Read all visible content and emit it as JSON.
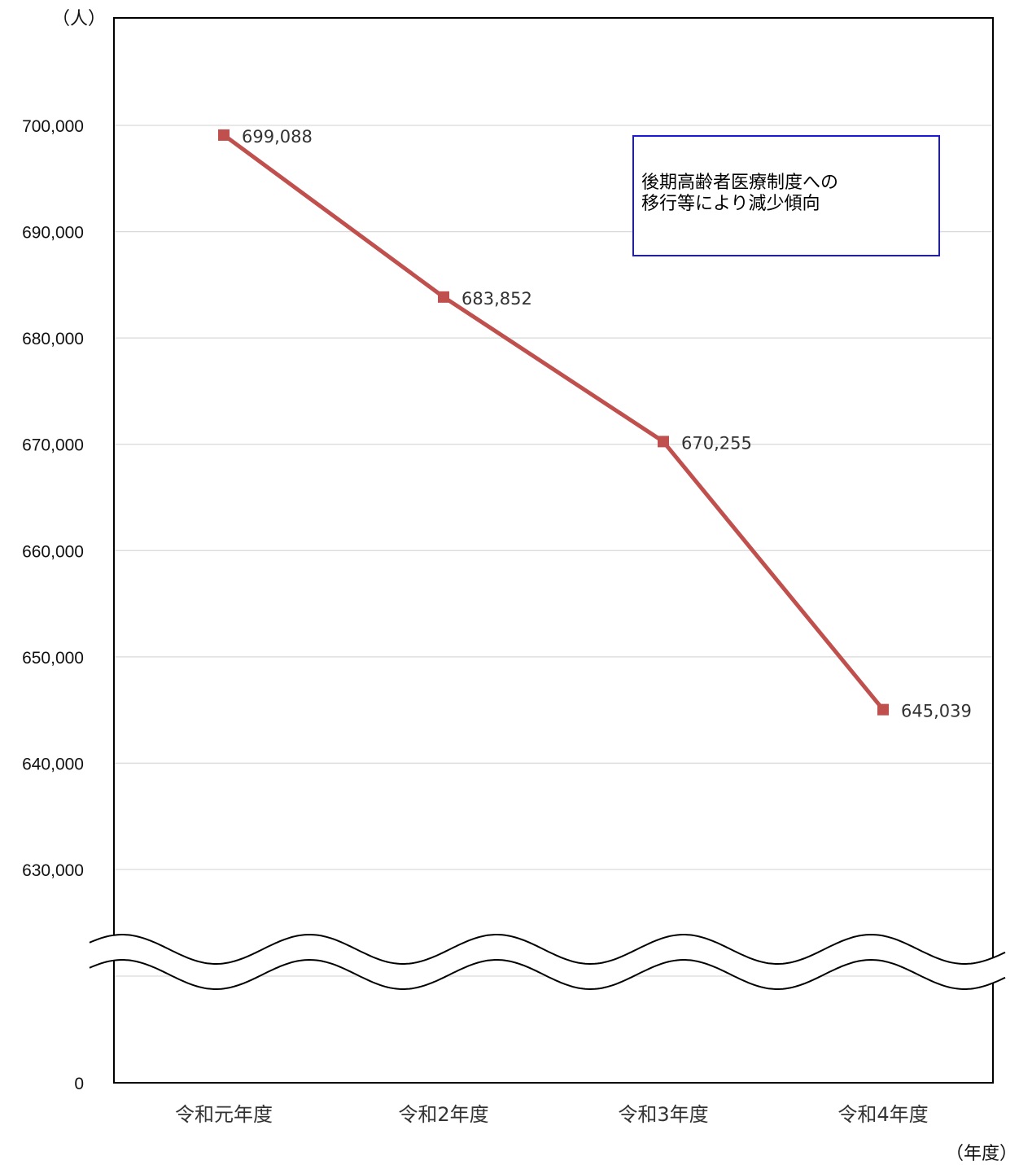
{
  "chart_data": {
    "type": "line",
    "categories": [
      "令和元年度",
      "令和2年度",
      "令和3年度",
      "令和4年度"
    ],
    "series": [
      {
        "values": [
          699088,
          683852,
          670255,
          645039
        ],
        "labels": [
          "699,088",
          "683,852",
          "670,255",
          "645,039"
        ],
        "color": "#c0504d"
      }
    ],
    "y_unit": "（人）",
    "x_unit": "（年度）",
    "y_ticks": [
      {
        "value": 700000,
        "label": "700,000"
      },
      {
        "value": 690000,
        "label": "690,000"
      },
      {
        "value": 680000,
        "label": "680,000"
      },
      {
        "value": 670000,
        "label": "670,000"
      },
      {
        "value": 660000,
        "label": "660,000"
      },
      {
        "value": 650000,
        "label": "650,000"
      },
      {
        "value": 640000,
        "label": "640,000"
      },
      {
        "value": 630000,
        "label": "630,000"
      },
      {
        "value": 0,
        "label": "0"
      }
    ],
    "ylim": [
      630000,
      710000
    ],
    "axis_break": true,
    "grid": true,
    "gridline_color": "#d9d9d9",
    "annotation": "後期高齢者医療制度への\n移行等により減少傾向",
    "annotation_border_color": "#1a1ad6"
  }
}
